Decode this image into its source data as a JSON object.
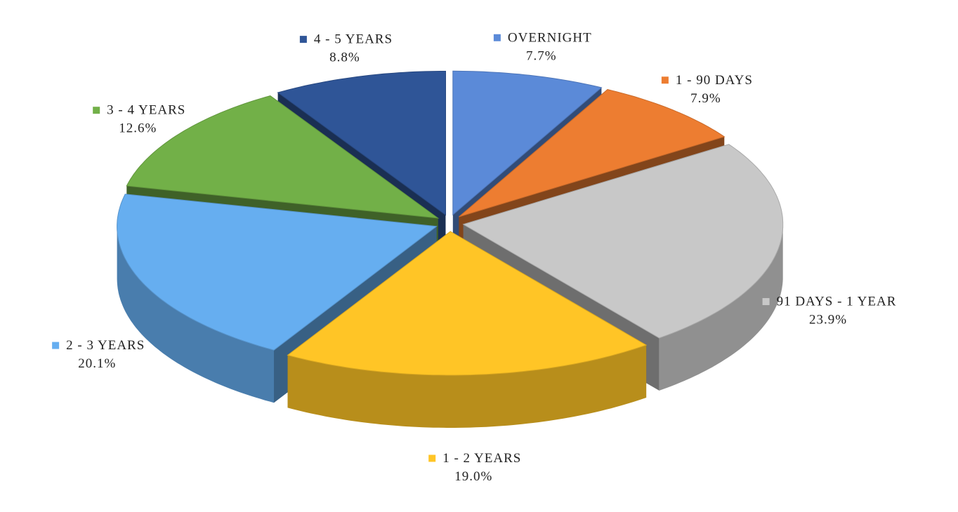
{
  "chart_data": {
    "type": "pie",
    "categories": [
      "OVERNIGHT",
      "1 - 90 DAYS",
      "91 DAYS - 1 YEAR",
      "1 - 2 YEARS",
      "2 - 3 YEARS",
      "3 - 4 YEARS",
      "4 - 5 YEARS"
    ],
    "values": [
      7.7,
      7.9,
      23.9,
      19.0,
      20.1,
      12.6,
      8.8
    ],
    "value_labels": [
      "7.7%",
      "7.9%",
      "23.9%",
      "19.0%",
      "20.1%",
      "12.6%",
      "8.8%"
    ],
    "colors": [
      "#5b8ad8",
      "#ed7d31",
      "#c8c8c8",
      "#ffc526",
      "#66aef0",
      "#72b048",
      "#2f5597"
    ]
  }
}
